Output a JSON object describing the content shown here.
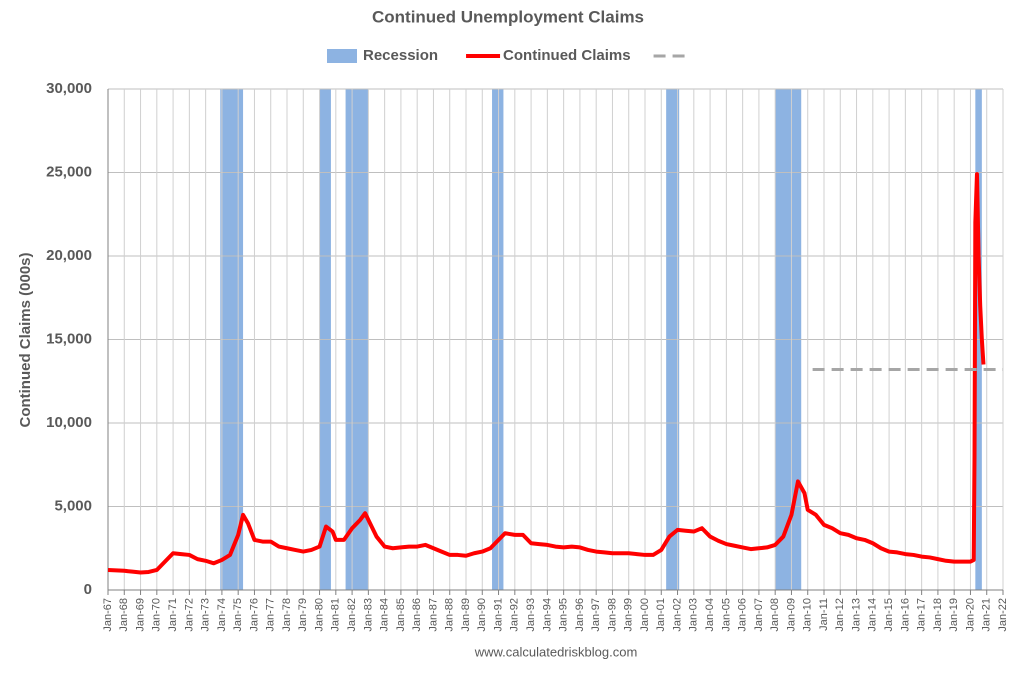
{
  "chart_data": {
    "type": "line",
    "title": "Continued Unemployment Claims",
    "y_label": "Continued Claims (000s)",
    "source": "www.calculatedriskblog.com",
    "legend": "top",
    "grid": true,
    "recession": {
      "name": "Recession",
      "color": "#8db3e2",
      "periods": [
        [
          1973.9,
          1975.3
        ],
        [
          1980.0,
          1980.7
        ],
        [
          1981.6,
          1983.0
        ],
        [
          1990.6,
          1991.3
        ],
        [
          2001.3,
          2002.1
        ],
        [
          2008.0,
          2009.6
        ],
        [
          2020.3,
          2020.7
        ]
      ]
    },
    "series": [
      {
        "name": "Continued Claims",
        "color": "#ff0000",
        "x": [
          1967,
          1968,
          1968.5,
          1969,
          1969.5,
          1970,
          1970.5,
          1971,
          1971.5,
          1972,
          1972.5,
          1973,
          1973.5,
          1974,
          1974.5,
          1975,
          1975.3,
          1975.6,
          1976,
          1976.5,
          1977,
          1977.5,
          1978,
          1978.5,
          1979,
          1979.5,
          1980,
          1980.4,
          1980.8,
          1981,
          1981.5,
          1982,
          1982.5,
          1982.8,
          1983,
          1983.5,
          1984,
          1984.5,
          1985,
          1985.5,
          1986,
          1986.5,
          1987,
          1987.5,
          1988,
          1988.5,
          1989,
          1989.5,
          1990,
          1990.5,
          1991,
          1991.4,
          1992,
          1992.5,
          1993,
          1993.5,
          1994,
          1994.5,
          1995,
          1995.5,
          1996,
          1996.5,
          1997,
          1997.5,
          1998,
          1998.5,
          1999,
          1999.5,
          2000,
          2000.5,
          2001,
          2001.5,
          2002,
          2002.5,
          2003,
          2003.5,
          2004,
          2004.5,
          2005,
          2005.5,
          2006,
          2006.5,
          2007,
          2007.5,
          2008,
          2008.5,
          2009,
          2009.4,
          2009.8,
          2010,
          2010.5,
          2011,
          2011.5,
          2012,
          2012.5,
          2013,
          2013.5,
          2014,
          2014.5,
          2015,
          2015.5,
          2016,
          2016.5,
          2017,
          2017.5,
          2018,
          2018.5,
          2019,
          2019.5,
          2020,
          2020.2,
          2020.25,
          2020.3,
          2020.4,
          2020.5,
          2020.6,
          2020.7,
          2020.8
        ],
        "values": [
          1200,
          1150,
          1100,
          1050,
          1080,
          1200,
          1700,
          2200,
          2150,
          2100,
          1850,
          1750,
          1600,
          1800,
          2100,
          3300,
          4500,
          4000,
          3000,
          2900,
          2900,
          2600,
          2500,
          2400,
          2300,
          2400,
          2600,
          3800,
          3500,
          3000,
          3000,
          3700,
          4200,
          4600,
          4200,
          3200,
          2600,
          2500,
          2550,
          2600,
          2600,
          2700,
          2500,
          2300,
          2100,
          2100,
          2050,
          2200,
          2300,
          2500,
          3000,
          3400,
          3300,
          3300,
          2800,
          2750,
          2700,
          2600,
          2550,
          2600,
          2550,
          2400,
          2300,
          2250,
          2200,
          2200,
          2200,
          2150,
          2100,
          2100,
          2400,
          3200,
          3600,
          3550,
          3500,
          3700,
          3200,
          2950,
          2750,
          2650,
          2550,
          2450,
          2500,
          2550,
          2700,
          3200,
          4500,
          6500,
          5800,
          4800,
          4500,
          3900,
          3700,
          3400,
          3300,
          3100,
          3000,
          2800,
          2500,
          2300,
          2250,
          2150,
          2100,
          2000,
          1950,
          1850,
          1750,
          1700,
          1700,
          1700,
          1800,
          8000,
          22000,
          24900,
          20000,
          17000,
          15000,
          13500
        ]
      },
      {
        "color": "#a6a6a6",
        "dashed": true,
        "x": [
          2010.3,
          2022
        ],
        "values": [
          13200,
          13200
        ]
      }
    ],
    "xlim": [
      1967,
      2022
    ],
    "xticks": [
      {
        "value": 1967,
        "label": "Jan-67"
      },
      {
        "value": 1968,
        "label": "Jan-68"
      },
      {
        "value": 1969,
        "label": "Jan-69"
      },
      {
        "value": 1970,
        "label": "Jan-70"
      },
      {
        "value": 1971,
        "label": "Jan-71"
      },
      {
        "value": 1972,
        "label": "Jan-72"
      },
      {
        "value": 1973,
        "label": "Jan-73"
      },
      {
        "value": 1974,
        "label": "Jan-74"
      },
      {
        "value": 1975,
        "label": "Jan-75"
      },
      {
        "value": 1976,
        "label": "Jan-76"
      },
      {
        "value": 1977,
        "label": "Jan-77"
      },
      {
        "value": 1978,
        "label": "Jan-78"
      },
      {
        "value": 1979,
        "label": "Jan-79"
      },
      {
        "value": 1980,
        "label": "Jan-80"
      },
      {
        "value": 1981,
        "label": "Jan-81"
      },
      {
        "value": 1982,
        "label": "Jan-82"
      },
      {
        "value": 1983,
        "label": "Jan-83"
      },
      {
        "value": 1984,
        "label": "Jan-84"
      },
      {
        "value": 1985,
        "label": "Jan-85"
      },
      {
        "value": 1986,
        "label": "Jan-86"
      },
      {
        "value": 1987,
        "label": "Jan-87"
      },
      {
        "value": 1988,
        "label": "Jan-88"
      },
      {
        "value": 1989,
        "label": "Jan-89"
      },
      {
        "value": 1990,
        "label": "Jan-90"
      },
      {
        "value": 1991,
        "label": "Jan-91"
      },
      {
        "value": 1992,
        "label": "Jan-92"
      },
      {
        "value": 1993,
        "label": "Jan-93"
      },
      {
        "value": 1994,
        "label": "Jan-94"
      },
      {
        "value": 1995,
        "label": "Jan-95"
      },
      {
        "value": 1996,
        "label": "Jan-96"
      },
      {
        "value": 1997,
        "label": "Jan-97"
      },
      {
        "value": 1998,
        "label": "Jan-98"
      },
      {
        "value": 1999,
        "label": "Jan-99"
      },
      {
        "value": 2000,
        "label": "Jan-00"
      },
      {
        "value": 2001,
        "label": "Jan-01"
      },
      {
        "value": 2002,
        "label": "Jan-02"
      },
      {
        "value": 2003,
        "label": "Jan-03"
      },
      {
        "value": 2004,
        "label": "Jan-04"
      },
      {
        "value": 2005,
        "label": "Jan-05"
      },
      {
        "value": 2006,
        "label": "Jan-06"
      },
      {
        "value": 2007,
        "label": "Jan-07"
      },
      {
        "value": 2008,
        "label": "Jan-08"
      },
      {
        "value": 2009,
        "label": "Jan-09"
      },
      {
        "value": 2010,
        "label": "Jan-10"
      },
      {
        "value": 2011,
        "label": "Jan-11"
      },
      {
        "value": 2012,
        "label": "Jan-12"
      },
      {
        "value": 2013,
        "label": "Jan-13"
      },
      {
        "value": 2014,
        "label": "Jan-14"
      },
      {
        "value": 2015,
        "label": "Jan-15"
      },
      {
        "value": 2016,
        "label": "Jan-16"
      },
      {
        "value": 2017,
        "label": "Jan-17"
      },
      {
        "value": 2018,
        "label": "Jan-18"
      },
      {
        "value": 2019,
        "label": "Jan-19"
      },
      {
        "value": 2020,
        "label": "Jan-20"
      },
      {
        "value": 2021,
        "label": "Jan-21"
      },
      {
        "value": 2022,
        "label": "Jan-22"
      }
    ],
    "ylim": [
      0,
      30000
    ],
    "yticks": [
      0,
      {
        "value": 5000,
        "label": "5,000"
      },
      {
        "value": 10000,
        "label": "10,000"
      },
      {
        "value": 15000,
        "label": "15,000"
      },
      {
        "value": 20000,
        "label": "20,000"
      },
      {
        "value": 25000,
        "label": "25,000"
      },
      {
        "value": 30000,
        "label": "30,000"
      }
    ]
  }
}
